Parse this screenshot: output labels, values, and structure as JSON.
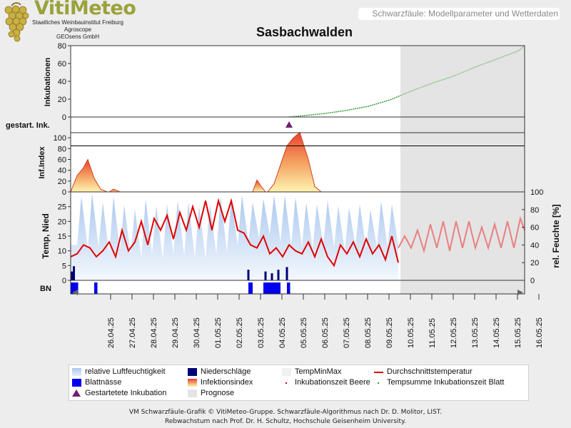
{
  "header": {
    "logo_text": "VitiMeteo",
    "institute_lines": [
      "Staatliches Weinbauinstitut Freiburg",
      "Agroscope",
      "GEOsens GmbH"
    ],
    "subtitle": "Schwarzfäule: Modellparameter und Wetterdaten"
  },
  "footer": {
    "line1": "VM Schwarzfäule-Grafik © VitiMeteo-Gruppe. Schwarzfäule-Algorithmus nach Dr. D. Molitor, LIST.",
    "line2": "Rebwachstum nach Prof. Dr. H. Schultz, Hochschule Geisenheim University."
  },
  "legend": [
    {
      "label": "relative Luftfeuchtigkeit",
      "swatch": "humidity"
    },
    {
      "label": "Niederschläge",
      "swatch": "precip"
    },
    {
      "label": "TempMinMax",
      "swatch": "tempminmax"
    },
    {
      "label": "Durchschnittstemperatur",
      "swatch": "line-red"
    },
    {
      "label": "Blattnässe",
      "swatch": "leafwet"
    },
    {
      "label": "Infektionsindex",
      "swatch": "infection"
    },
    {
      "label": "Inkubationszeit Beere",
      "swatch": "dot-red"
    },
    {
      "label": "Tempsumme Inkubationszeit Blatt",
      "swatch": "dot-green"
    },
    {
      "label": "Gestartetete Inkubation",
      "swatch": "triangle"
    },
    {
      "label": "Prognose",
      "swatch": "forecast"
    }
  ],
  "chart_data": {
    "title": "Sasbachwalden",
    "type": "line",
    "x_tick_labels": [
      "26.04.25",
      "27.04.25",
      "28.04.25",
      "29.04.25",
      "30.04.25",
      "01.05.25",
      "02.05.25",
      "03.05.25",
      "04.05.25",
      "05.05.25",
      "06.05.25",
      "07.05.25",
      "08.05.25",
      "09.05.25",
      "10.05.25",
      "11.05.25",
      "12.05.25",
      "13.05.25",
      "14.05.25",
      "15.05.25",
      "16.05.25"
    ],
    "x_range_days": [
      -0.9,
      20.3
    ],
    "forecast_start_day": 14.5,
    "panels": {
      "incubation": {
        "ylabel": "Inkubationen",
        "ylim": [
          0,
          80
        ],
        "yticks": [
          0,
          20,
          40,
          60,
          80
        ],
        "series_x": [
          9.3,
          10,
          11,
          12,
          13,
          14,
          14.5,
          15,
          16,
          17,
          18,
          19,
          20,
          20.3
        ],
        "series_y": [
          0,
          1.5,
          4,
          7.5,
          12,
          19,
          24,
          29,
          38,
          46,
          56,
          65,
          74,
          80
        ]
      },
      "started": {
        "ylabel": "gestart. Ink.",
        "events_day": [
          9.3
        ]
      },
      "infection": {
        "ylabel": "Inf.Index",
        "ylim": [
          0,
          120
        ],
        "yticks": [
          0,
          20,
          40,
          60,
          80,
          100
        ],
        "threshold": 85,
        "events": [
          {
            "x": [
              -0.9,
              -0.6,
              -0.3,
              -0.1,
              0.2,
              0.5,
              0.8
            ],
            "y": [
              0,
              30,
              45,
              60,
              25,
              5,
              0
            ]
          },
          {
            "x": [
              0.9,
              1.1,
              1.4
            ],
            "y": [
              0,
              5,
              0
            ]
          },
          {
            "x": [
              7.6,
              7.8,
              8.0,
              8.2
            ],
            "y": [
              0,
              22,
              10,
              0
            ]
          },
          {
            "x": [
              8.3,
              8.6,
              8.9,
              9.2,
              9.5,
              9.8,
              10.2,
              10.5,
              10.8
            ],
            "y": [
              0,
              15,
              50,
              85,
              100,
              110,
              60,
              10,
              0
            ]
          }
        ]
      },
      "weather": {
        "ylabel_left": "Temp, Nied",
        "ylabel_right": "rel. Feuchte [%]",
        "ylim_left": [
          0,
          30
        ],
        "yticks_left": [
          0,
          5,
          10,
          15,
          20,
          25
        ],
        "ylim_right": [
          0,
          100
        ],
        "yticks_right": [
          0,
          20,
          40,
          60,
          80,
          100
        ],
        "humidity_peaks_day": [
          -0.4,
          0.1,
          0.6,
          1.1,
          1.6,
          2.1,
          2.6,
          3.1,
          3.6,
          4.1,
          4.6,
          5.1,
          5.6,
          6.1,
          6.6,
          7.1,
          7.6,
          8.1,
          8.6,
          9.1,
          9.6,
          10.1,
          10.6,
          11.1,
          11.6,
          12.1,
          12.6,
          13.1,
          13.6,
          14.1
        ],
        "humidity_peak_values": [
          95,
          98,
          88,
          95,
          85,
          80,
          92,
          84,
          86,
          90,
          88,
          84,
          86,
          94,
          92,
          96,
          88,
          92,
          96,
          96,
          94,
          88,
          86,
          90,
          84,
          82,
          86,
          80,
          90,
          86
        ],
        "humidity_trough_values": [
          40,
          36,
          38,
          30,
          34,
          30,
          26,
          30,
          24,
          30,
          28,
          26,
          24,
          30,
          32,
          40,
          44,
          48,
          52,
          44,
          40,
          38,
          36,
          40,
          38,
          34,
          40,
          36,
          38,
          38
        ],
        "temp_x": [
          -0.9,
          -0.6,
          -0.3,
          0.0,
          0.3,
          0.6,
          0.9,
          1.2,
          1.5,
          1.8,
          2.1,
          2.4,
          2.7,
          3.0,
          3.3,
          3.6,
          3.9,
          4.2,
          4.5,
          4.8,
          5.1,
          5.4,
          5.7,
          6.0,
          6.3,
          6.6,
          6.9,
          7.2,
          7.5,
          7.8,
          8.1,
          8.4,
          8.7,
          9.0,
          9.3,
          9.6,
          9.9,
          10.2,
          10.5,
          10.8,
          11.1,
          11.4,
          11.7,
          12.0,
          12.3,
          12.6,
          12.9,
          13.2,
          13.5,
          13.8,
          14.1,
          14.4
        ],
        "temp_y": [
          8,
          9,
          12,
          11,
          8,
          10,
          13,
          8,
          17,
          10,
          13,
          20,
          12,
          21,
          17,
          22,
          14,
          23,
          17,
          25,
          18,
          27,
          17,
          27,
          20,
          27,
          17,
          16,
          12,
          11,
          15,
          9,
          11,
          8,
          12,
          10,
          9,
          13,
          8,
          14,
          8,
          5,
          12,
          9,
          13,
          8,
          14,
          9,
          12,
          7,
          15,
          6
        ],
        "forecast_temp_x": [
          14.4,
          14.7,
          15.0,
          15.3,
          15.6,
          15.9,
          16.2,
          16.5,
          16.8,
          17.1,
          17.4,
          17.7,
          18.0,
          18.3,
          18.6,
          18.9,
          19.2,
          19.5,
          19.8,
          20.1,
          20.3
        ],
        "forecast_temp_y": [
          11,
          15,
          11,
          17,
          10,
          19,
          11,
          20,
          10,
          20,
          11,
          20,
          11,
          18,
          11,
          19,
          11,
          20,
          11,
          21,
          17
        ],
        "precip_days": [
          -0.85,
          -0.75,
          7.4,
          8.2,
          8.5,
          8.8,
          9.2
        ],
        "precip_values": [
          1.0,
          1.6,
          1.2,
          1.0,
          0.8,
          1.2,
          1.5
        ],
        "leafwet_intervals_day": [
          [
            -0.9,
            -0.55
          ],
          [
            0.2,
            0.35
          ],
          [
            7.4,
            7.6
          ],
          [
            8.1,
            8.9
          ],
          [
            9.2,
            9.35
          ]
        ],
        "bn_label": "BN"
      }
    },
    "colors": {
      "humidity": "#b6cfef",
      "temp": "#e00000",
      "forecast_temp": "#e88080",
      "incubation": "#3a9a3a",
      "forecast_incubation": "#8ac28a",
      "precip": "#00007a",
      "leafwet": "#0000ee",
      "triangle": "#702070",
      "forecast_bg": "#e4e4e4"
    }
  }
}
